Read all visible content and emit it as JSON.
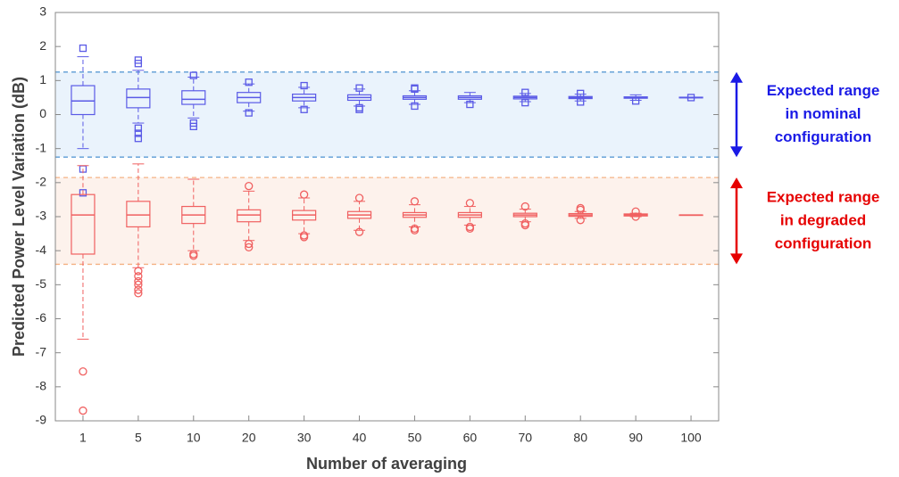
{
  "chart_data": {
    "type": "box",
    "ylabel": "Predicted Power Level Variation (dB)",
    "xlabel": "Number of averaging",
    "categories": [
      "1",
      "5",
      "10",
      "20",
      "30",
      "40",
      "50",
      "60",
      "70",
      "80",
      "90",
      "100"
    ],
    "ylim": [
      -9,
      3
    ],
    "yticks": [
      -9,
      -8,
      -7,
      -6,
      -5,
      -4,
      -3,
      -2,
      -1,
      0,
      1,
      2,
      3
    ],
    "grid": false,
    "bands": [
      {
        "range": [
          -1.25,
          1.25
        ],
        "color": "#eaf3fc",
        "line_color": "#5b9bd5"
      },
      {
        "range": [
          -4.4,
          -1.85
        ],
        "color": "#fdf2ec",
        "line_color": "#f4b183"
      }
    ],
    "annotations": [
      {
        "lines": [
          "Expected range",
          "in nominal",
          "configuration"
        ],
        "color": "#1a1ae6",
        "band": 0
      },
      {
        "lines": [
          "Expected range",
          "in degraded",
          "configuration"
        ],
        "color": "#e60000",
        "band": 1
      }
    ],
    "series": [
      {
        "color": "#5a5ae6",
        "marker": "square",
        "whisker_low": [
          -1.0,
          -0.25,
          -0.1,
          0.1,
          0.2,
          0.25,
          0.3,
          0.35,
          0.38,
          0.4,
          0.42,
          0.49
        ],
        "q1": [
          0,
          0.2,
          0.3,
          0.35,
          0.4,
          0.42,
          0.45,
          0.45,
          0.46,
          0.47,
          0.48,
          0.49
        ],
        "median": [
          0.4,
          0.5,
          0.45,
          0.5,
          0.5,
          0.5,
          0.5,
          0.5,
          0.5,
          0.5,
          0.5,
          0.5
        ],
        "q3": [
          0.85,
          0.75,
          0.7,
          0.65,
          0.6,
          0.58,
          0.55,
          0.55,
          0.54,
          0.53,
          0.52,
          0.51
        ],
        "whisker_high": [
          1.7,
          1.3,
          1.1,
          0.9,
          0.8,
          0.75,
          0.7,
          0.65,
          0.62,
          0.6,
          0.58,
          0.51
        ],
        "outliers": [
          [
            1.95,
            -1.6,
            -2.3
          ],
          [
            1.6,
            1.5,
            -0.4,
            -0.55,
            -0.7
          ],
          [
            1.15,
            -0.25,
            -0.35
          ],
          [
            0.95,
            0.05
          ],
          [
            0.85,
            0.15
          ],
          [
            0.78,
            0.2,
            0.15
          ],
          [
            0.78,
            0.75,
            0.25
          ],
          [
            0.3
          ],
          [
            0.65,
            0.35
          ],
          [
            0.62,
            0.37
          ],
          [
            0.4
          ],
          [
            0.5
          ]
        ]
      },
      {
        "color": "#f06060",
        "marker": "circle",
        "whisker_low": [
          -6.6,
          -4.5,
          -4.0,
          -3.7,
          -3.5,
          -3.4,
          -3.3,
          -3.25,
          -3.15,
          -3.05,
          -3.0,
          -2.95
        ],
        "q1": [
          -4.1,
          -3.3,
          -3.2,
          -3.15,
          -3.1,
          -3.05,
          -3.02,
          -3.02,
          -3.0,
          -2.99,
          -2.98,
          -2.95
        ],
        "median": [
          -2.95,
          -2.95,
          -2.95,
          -2.95,
          -2.95,
          -2.95,
          -2.95,
          -2.95,
          -2.95,
          -2.95,
          -2.95,
          -2.95
        ],
        "q3": [
          -2.35,
          -2.55,
          -2.7,
          -2.8,
          -2.82,
          -2.85,
          -2.88,
          -2.88,
          -2.9,
          -2.91,
          -2.92,
          -2.95
        ],
        "whisker_high": [
          -1.5,
          -1.45,
          -1.9,
          -2.25,
          -2.45,
          -2.55,
          -2.65,
          -2.7,
          -2.78,
          -2.85,
          -2.9,
          -2.95
        ],
        "outliers": [
          [
            -7.55,
            -8.7
          ],
          [
            -4.6,
            -4.75,
            -4.9,
            -5.0,
            -5.15,
            -5.25
          ],
          [
            -4.1,
            -4.15
          ],
          [
            -2.1,
            -3.8,
            -3.9
          ],
          [
            -2.35,
            -3.55,
            -3.6
          ],
          [
            -2.45,
            -3.45
          ],
          [
            -2.55,
            -3.35,
            -3.4
          ],
          [
            -2.6,
            -3.3,
            -3.35
          ],
          [
            -2.7,
            -3.2,
            -3.25
          ],
          [
            -2.75,
            -2.8,
            -3.1
          ],
          [
            -2.85,
            -3.0
          ],
          []
        ]
      }
    ]
  }
}
